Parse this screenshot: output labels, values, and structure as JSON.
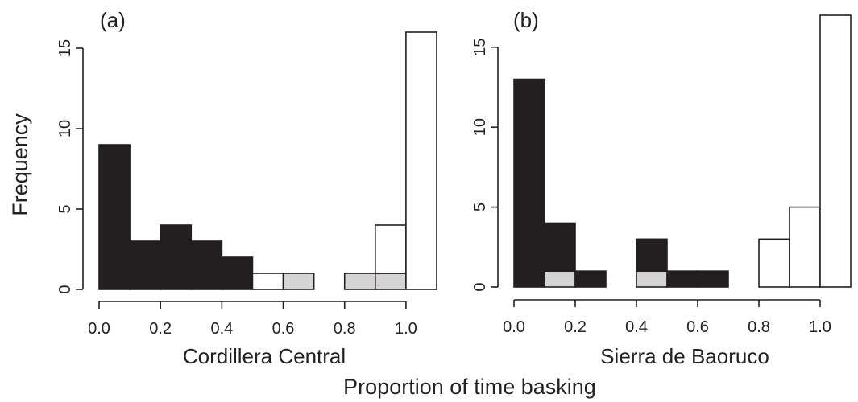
{
  "figure": {
    "shared_ylabel": "Frequency",
    "shared_xlabel": "Proportion of time basking"
  },
  "colors": {
    "black": "#231f20",
    "grey": "#d4d4d4",
    "white": "#ffffff",
    "stroke": "#231f20"
  },
  "chart_data": [
    {
      "type": "bar",
      "panel": "(a)",
      "title": "Cordillera Central",
      "bin_width": 0.1,
      "bins": [
        0.0,
        0.1,
        0.2,
        0.3,
        0.4,
        0.5,
        0.6,
        0.7,
        0.8,
        0.9,
        1.0
      ],
      "stack": [
        {
          "fill": "black",
          "values": [
            9,
            3,
            4,
            3,
            2,
            0,
            0,
            0,
            0,
            0,
            0
          ]
        },
        {
          "fill": "grey",
          "values": [
            0,
            0,
            0,
            0,
            0,
            0,
            1,
            0,
            1,
            1,
            0
          ]
        },
        {
          "fill": "white",
          "values": [
            0,
            0,
            0,
            0,
            0,
            1,
            0,
            0,
            0,
            3,
            16
          ]
        }
      ],
      "xlim": [
        0,
        1.1
      ],
      "ylim": [
        0,
        16
      ],
      "xticks": [
        0.0,
        0.2,
        0.4,
        0.6,
        0.8,
        1.0
      ],
      "xtick_labels": [
        "0.0",
        "0.2",
        "0.4",
        "0.6",
        "0.8",
        "1.0"
      ],
      "yticks": [
        0,
        5,
        10,
        15
      ],
      "ytick_labels": [
        "0",
        "5",
        "10",
        "15"
      ],
      "grid": false,
      "xlabel": "Cordillera Central"
    },
    {
      "type": "bar",
      "panel": "(b)",
      "title": "Sierra de Baoruco",
      "bin_width": 0.1,
      "bins": [
        0.0,
        0.1,
        0.2,
        0.3,
        0.4,
        0.5,
        0.6,
        0.7,
        0.8,
        0.9,
        1.0
      ],
      "stack": [
        {
          "fill": "grey",
          "values": [
            0,
            1,
            0,
            0,
            1,
            0,
            0,
            0,
            0,
            0,
            0
          ]
        },
        {
          "fill": "black",
          "values": [
            13,
            3,
            1,
            0,
            2,
            1,
            1,
            0,
            0,
            0,
            0
          ]
        },
        {
          "fill": "white",
          "values": [
            0,
            0,
            0,
            0,
            0,
            0,
            0,
            0,
            3,
            5,
            17
          ]
        }
      ],
      "xlim": [
        0,
        1.1
      ],
      "ylim": [
        0,
        17
      ],
      "xticks": [
        0.0,
        0.2,
        0.4,
        0.6,
        0.8,
        1.0
      ],
      "xtick_labels": [
        "0.0",
        "0.2",
        "0.4",
        "0.6",
        "0.8",
        "1.0"
      ],
      "yticks": [
        0,
        5,
        10,
        15
      ],
      "ytick_labels": [
        "0",
        "5",
        "10",
        "15"
      ],
      "grid": false,
      "xlabel": "Sierra de Baoruco"
    }
  ]
}
